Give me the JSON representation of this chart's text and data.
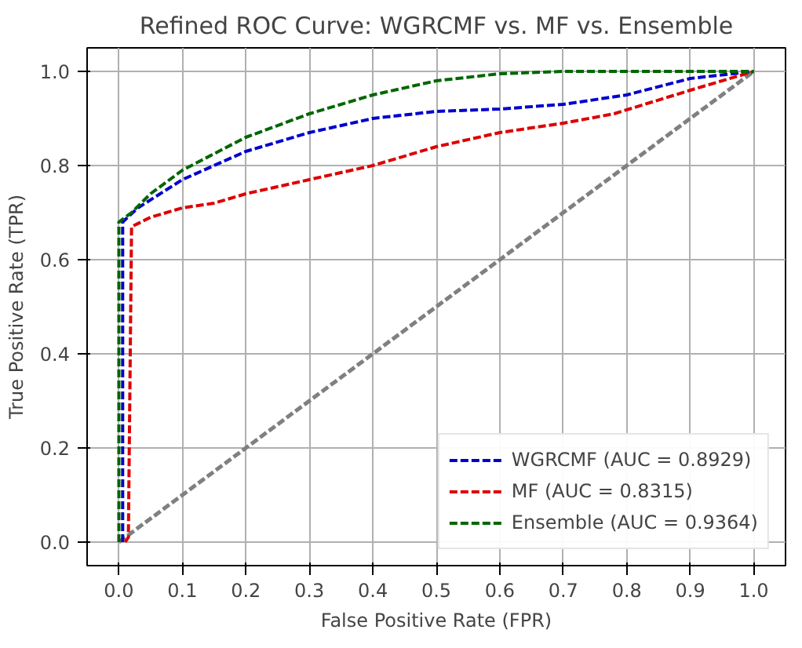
{
  "chart_data": {
    "type": "line",
    "title": "Refined ROC Curve: WGRCMF vs. MF vs. Ensemble",
    "xlabel": "False Positive Rate (FPR)",
    "ylabel": "True Positive Rate (TPR)",
    "series": [
      {
        "name": "WGRCMF (AUC = 0.8929)",
        "color": "#0000cc",
        "x": [
          0.006,
          0.006,
          0.03,
          0.1,
          0.2,
          0.3,
          0.4,
          0.5,
          0.6,
          0.7,
          0.8,
          0.9,
          1
        ],
        "values": [
          0,
          0.68,
          0.71,
          0.77,
          0.83,
          0.87,
          0.9,
          0.915,
          0.92,
          0.93,
          0.95,
          0.985,
          1
        ]
      },
      {
        "name": "MF (AUC = 0.8315)",
        "color": "#dd0000",
        "x": [
          0.01,
          0.015,
          0.02,
          0.05,
          0.1,
          0.15,
          0.2,
          0.3,
          0.4,
          0.5,
          0.6,
          0.7,
          0.78,
          0.9,
          1
        ],
        "values": [
          0,
          0.01,
          0.67,
          0.69,
          0.71,
          0.72,
          0.74,
          0.77,
          0.8,
          0.84,
          0.87,
          0.89,
          0.91,
          0.96,
          1
        ]
      },
      {
        "name": "Ensemble (AUC = 0.9364)",
        "color": "#006600",
        "x": [
          0,
          0.0,
          0.02,
          0.05,
          0.1,
          0.2,
          0.3,
          0.4,
          0.5,
          0.6,
          0.7,
          1
        ],
        "values": [
          0,
          0.68,
          0.7,
          0.74,
          0.79,
          0.86,
          0.91,
          0.95,
          0.98,
          0.995,
          1,
          1
        ]
      },
      {
        "color": "#808080",
        "x": [
          0,
          1
        ],
        "values": [
          0,
          1
        ]
      }
    ],
    "line_style": "dashed",
    "xlim": [
      -0.05,
      1.05
    ],
    "ylim": [
      -0.05,
      1.05
    ],
    "xticks": [
      {
        "value": 0,
        "label": "0.0"
      },
      0.1,
      0.2,
      0.3,
      0.4,
      0.5,
      0.6,
      0.7,
      0.8,
      0.9,
      {
        "value": 1,
        "label": "1.0"
      }
    ],
    "yticks": [
      {
        "value": 0,
        "label": "0.0"
      },
      0.2,
      0.4,
      0.6,
      0.8,
      {
        "value": 1,
        "label": "1.0"
      }
    ],
    "grid": true,
    "legend": "bottom right"
  }
}
